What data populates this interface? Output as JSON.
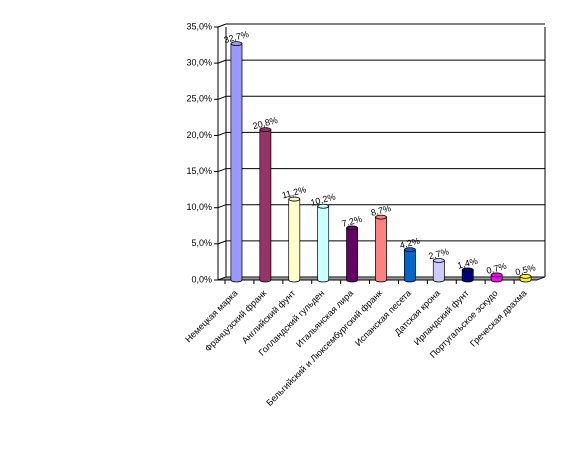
{
  "chart_data": {
    "type": "bar",
    "categories": [
      "Немецкая марка",
      "Французский франк",
      "Английский фунт",
      "Голландский гульден",
      "Итальянская лира",
      "Бельгийский и Люксембургский франк",
      "Испанская песета",
      "Датская крона",
      "Ирландский фунт",
      "Португальское эскудо",
      "Греческая драхма"
    ],
    "values": [
      32.7,
      20.8,
      11.2,
      10.2,
      7.2,
      8.7,
      4.2,
      2.7,
      1.4,
      0.7,
      0.5
    ],
    "value_labels": [
      "32,7%",
      "20,8%",
      "11,2%",
      "10,2%",
      "7,2%",
      "8,7%",
      "4,2%",
      "2,7%",
      "1,4%",
      "0,7%",
      "0,5%"
    ],
    "colors": [
      "#9999ff",
      "#993366",
      "#ffffcc",
      "#ccffff",
      "#660066",
      "#ff8080",
      "#0066cc",
      "#ccccff",
      "#000080",
      "#ff00ff",
      "#ffff00"
    ],
    "ylim": [
      0,
      35
    ],
    "yticks": [
      {
        "value": 0,
        "label": "0,0%"
      },
      {
        "value": 5,
        "label": "5,0%"
      },
      {
        "value": 10,
        "label": "10,0%"
      },
      {
        "value": 15,
        "label": "15,0%"
      },
      {
        "value": 20,
        "label": "20,0%"
      },
      {
        "value": 25,
        "label": "25,0%"
      },
      {
        "value": 30,
        "label": "30,0%"
      },
      {
        "value": 35,
        "label": "35,0%"
      }
    ],
    "grid": true
  }
}
